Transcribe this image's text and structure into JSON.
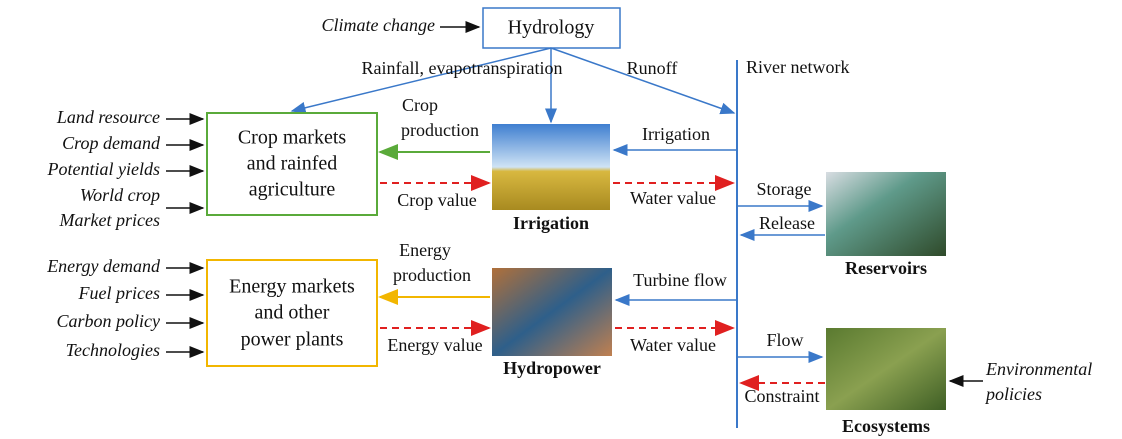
{
  "drivers": {
    "climate": "Climate change"
  },
  "hydrology": "Hydrology",
  "flows": {
    "rainfall": "Rainfall, evapotranspiration",
    "runoff": "Runoff",
    "river": "River network"
  },
  "crop": {
    "inputs": [
      "Land resource",
      "Crop demand",
      "Potential yields",
      "World crop",
      "Market prices"
    ],
    "box": [
      "Crop markets",
      "and rainfed",
      "agriculture"
    ],
    "production": [
      "Crop",
      "production"
    ],
    "value": "Crop value",
    "irrigation_label": "Irrigation",
    "irrigation_flow": "Irrigation",
    "water_value": "Water value"
  },
  "reservoir": {
    "storage": "Storage",
    "release": "Release",
    "label": "Reservoirs"
  },
  "energy": {
    "inputs": [
      "Energy demand",
      "Fuel prices",
      "Carbon policy",
      "Technologies"
    ],
    "box": [
      "Energy markets",
      "and other",
      "power plants"
    ],
    "production": [
      "Energy",
      "production"
    ],
    "value": "Energy value",
    "hydropower_label": "Hydropower",
    "turbine_flow": "Turbine flow",
    "water_value": "Water value"
  },
  "ecosystem": {
    "flow": "Flow",
    "constraint": "Constraint",
    "label": "Ecosystems",
    "policies": [
      "Environmental",
      "policies"
    ]
  }
}
